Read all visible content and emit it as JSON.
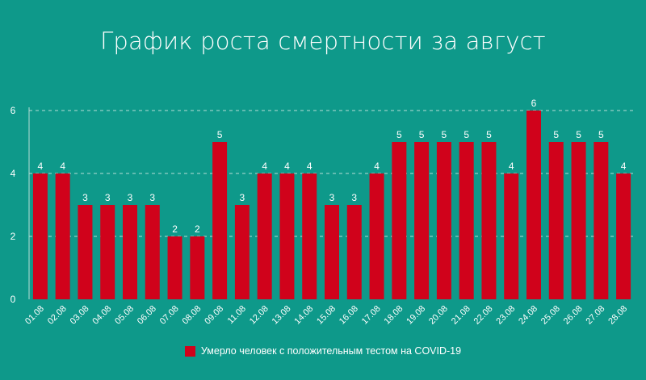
{
  "chart_data": {
    "type": "bar",
    "title": "График роста смертности за август",
    "categories": [
      "01.08",
      "02.08",
      "03.08",
      "04.08",
      "05.08",
      "06.08",
      "07.08",
      "08.08",
      "09.08",
      "11.08",
      "12.08",
      "13.08",
      "14.08",
      "15.08",
      "16.08",
      "17.08",
      "18.08",
      "19.08",
      "20.08",
      "21.08",
      "22.08",
      "23.08",
      "24.08",
      "25.08",
      "26.08",
      "27.08",
      "28.08"
    ],
    "series": [
      {
        "name": "Умерло человек с положительным тестом на COVID-19",
        "values": [
          4,
          4,
          3,
          3,
          3,
          3,
          2,
          2,
          5,
          3,
          4,
          4,
          4,
          3,
          3,
          4,
          5,
          5,
          5,
          5,
          5,
          4,
          6,
          5,
          5,
          5,
          4
        ]
      }
    ],
    "y_ticks": [
      "0",
      "2",
      "4",
      "6"
    ],
    "ylim": [
      0,
      6
    ],
    "xlabel": "",
    "ylabel": "",
    "grid": true,
    "legend_position": "bottom",
    "colors": {
      "background": "#0e998a",
      "bar": "#d0021b",
      "text": "#ffffff",
      "grid": "#b7ddd7"
    }
  }
}
